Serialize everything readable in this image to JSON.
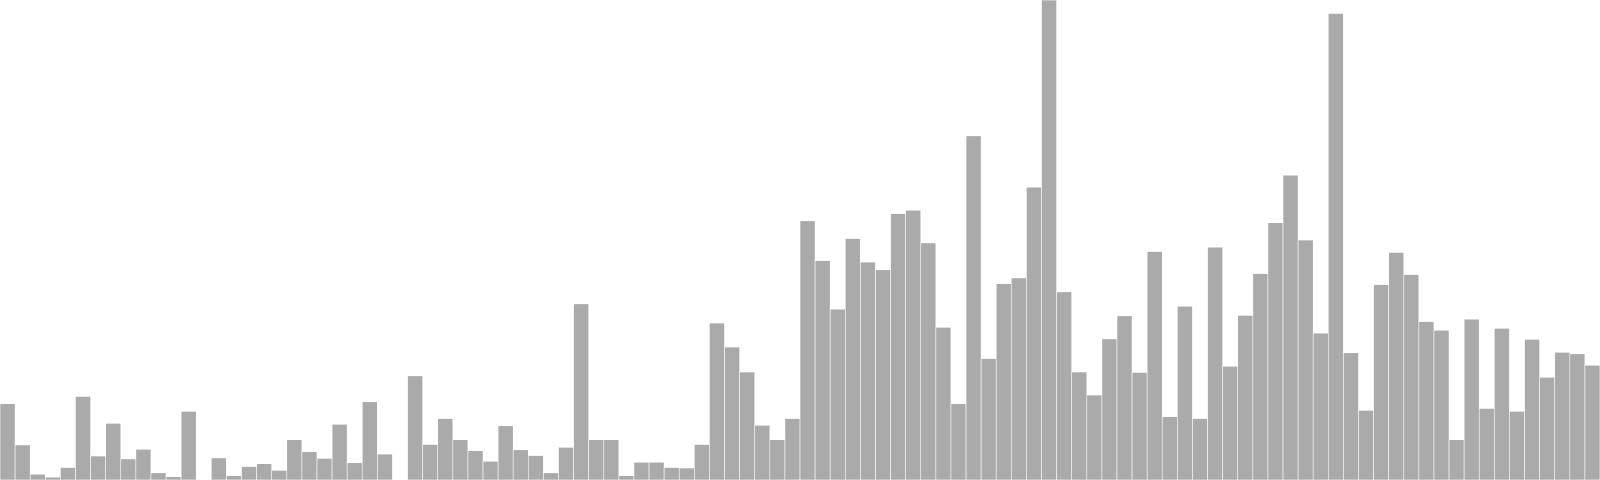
{
  "chart_data": {
    "type": "bar",
    "title": "",
    "xlabel": "",
    "ylabel": "",
    "grid": false,
    "legend": "none",
    "ylim": [
      0,
      100
    ],
    "bar_color": "#aaaaaa",
    "bar_stroke_color": "#ffffff",
    "values": [
      15.9,
      7.3,
      1.2,
      0.6,
      2.6,
      17.4,
      5.0,
      11.8,
      4.4,
      6.4,
      1.5,
      0.7,
      14.3,
      0,
      4.6,
      0.9,
      2.8,
      3.4,
      2.0,
      8.4,
      5.9,
      4.5,
      11.6,
      3.6,
      16.3,
      5.4,
      0,
      21.7,
      7.4,
      12.8,
      8.4,
      6.1,
      3.9,
      11.3,
      6.3,
      5.1,
      1.5,
      6.8,
      36.7,
      8.4,
      8.4,
      0.9,
      3.7,
      3.7,
      2.6,
      2.5,
      7.4,
      32.7,
      27.7,
      22.5,
      11.4,
      8.4,
      12.8,
      54.0,
      45.7,
      35.6,
      50.3,
      45.4,
      43.8,
      55.5,
      56.2,
      49.4,
      31.8,
      15.9,
      71.7,
      25.3,
      40.9,
      42.1,
      61.0,
      100.0,
      39.2,
      22.5,
      17.7,
      29.4,
      34.2,
      22.4,
      47.6,
      13.2,
      36.2,
      12.8,
      48.5,
      23.7,
      34.3,
      43.0,
      53.6,
      63.5,
      50.0,
      30.6,
      97.2,
      26.5,
      14.5,
      40.7,
      47.4,
      42.8,
      33.0,
      31.2,
      8.4,
      33.5,
      14.9,
      31.6,
      14.3,
      29.3,
      21.4,
      26.6,
      26.3,
      23.9
    ]
  }
}
